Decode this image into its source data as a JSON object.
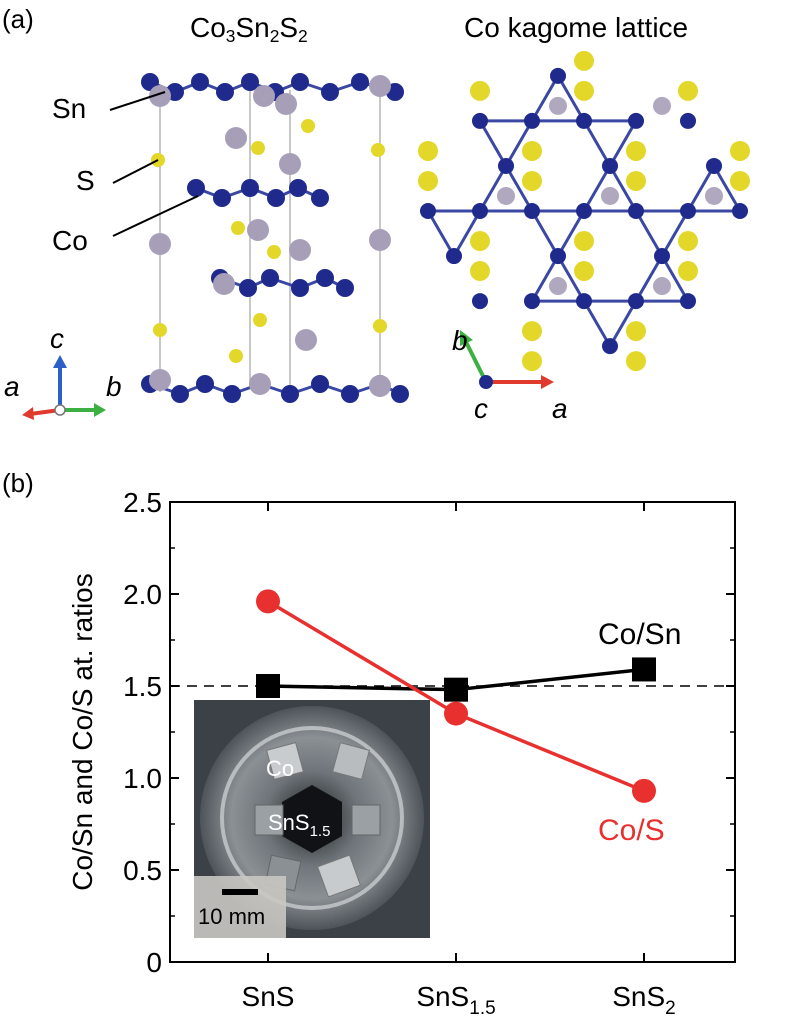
{
  "panel_a": {
    "label": "(a)",
    "left_title": "Co3Sn2S2",
    "right_title": "Co kagome lattice",
    "atom_labels": [
      "Sn",
      "S",
      "Co"
    ],
    "left_axes": {
      "up": "c",
      "left": "a",
      "right": "b"
    },
    "right_axes": {
      "up": "b",
      "center": "c",
      "right": "a"
    },
    "colors": {
      "co": "#1f2a8c",
      "sn": "#a79fb8",
      "s": "#e3d82a",
      "bond": "#3a47a3"
    }
  },
  "panel_b": {
    "label": "(b)",
    "inset": {
      "label_co": "Co",
      "label_sns": "SnS1.5",
      "scale_bar": "10 mm"
    }
  },
  "chart_data": {
    "type": "line",
    "categories": [
      "SnS",
      "SnS1.5",
      "SnS2"
    ],
    "category_display": [
      {
        "base": "SnS",
        "sub": ""
      },
      {
        "base": "SnS",
        "sub": "1.5"
      },
      {
        "base": "SnS",
        "sub": "2"
      }
    ],
    "series": [
      {
        "name": "Co/Sn",
        "values": [
          1.5,
          1.48,
          1.59
        ],
        "color": "#000000",
        "marker": "square"
      },
      {
        "name": "Co/S",
        "values": [
          1.96,
          1.35,
          0.93
        ],
        "color": "#e8302f",
        "marker": "circle"
      }
    ],
    "ylabel": "Co/Sn and Co/S at. ratios",
    "ylim": [
      0,
      2.5
    ],
    "yticks": [
      "0",
      "0.5",
      "1.0",
      "1.5",
      "2.0",
      "2.5"
    ],
    "reference_line": 1.5
  }
}
